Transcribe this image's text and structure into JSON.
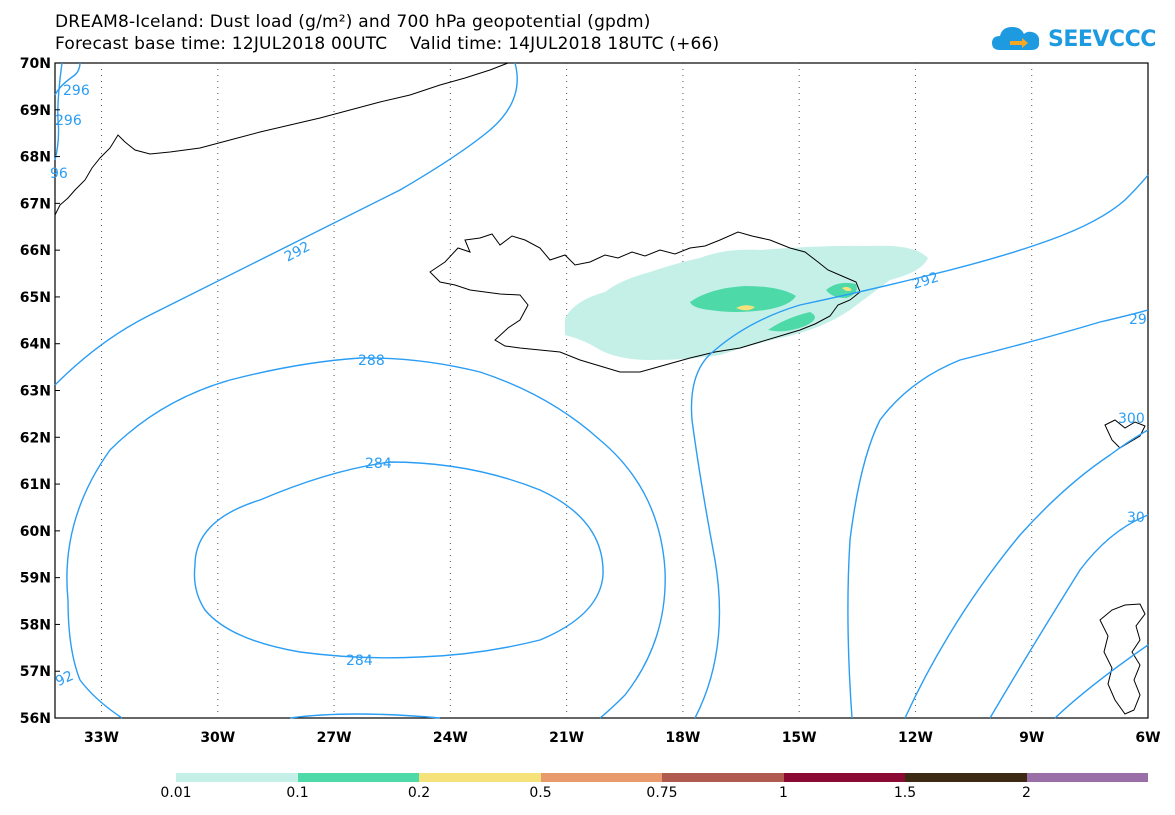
{
  "title": {
    "line1": "DREAM8-Iceland: Dust load (g/m²) and 700 hPa geopotential (gpdm)",
    "line2": "Forecast base time: 12JUL2018 00UTC    Valid time: 14JUL2018 18UTC (+66)"
  },
  "logo": {
    "text": "SEEVCCC",
    "color": "#1e9be0"
  },
  "map": {
    "lat_labels": [
      "70N",
      "69N",
      "68N",
      "67N",
      "66N",
      "65N",
      "64N",
      "63N",
      "62N",
      "61N",
      "60N",
      "59N",
      "58N",
      "57N",
      "56N"
    ],
    "lon_labels": [
      "33W",
      "30W",
      "27W",
      "24W",
      "21W",
      "18W",
      "15W",
      "12W",
      "9W",
      "6W"
    ],
    "lat_range": [
      56,
      70
    ],
    "lon_range": [
      -34.2,
      -6
    ],
    "gridlines": "dotted",
    "contour_color": "#2a9df4",
    "contour_labels": [
      {
        "text": "296",
        "name": "contour-label-296-top"
      },
      {
        "text": "296",
        "name": "contour-label-296-top2"
      },
      {
        "text": "96",
        "name": "contour-label-96-left"
      },
      {
        "text": "292",
        "name": "contour-label-292-west"
      },
      {
        "text": "292",
        "name": "contour-label-292-east"
      },
      {
        "text": "29",
        "name": "contour-label-29-east"
      },
      {
        "text": "288",
        "name": "contour-label-288"
      },
      {
        "text": "284",
        "name": "contour-label-284-north"
      },
      {
        "text": "284",
        "name": "contour-label-284-south"
      },
      {
        "text": "300",
        "name": "contour-label-300"
      },
      {
        "text": "30",
        "name": "contour-label-30"
      },
      {
        "text": "92",
        "name": "contour-label-92-southwest"
      }
    ]
  },
  "colorbar": {
    "colors": [
      "#c5f0e8",
      "#4dd9a8",
      "#f5e27a",
      "#e89a6c",
      "#b05a50",
      "#8a0a34",
      "#3d2a14",
      "#9a6fa8"
    ],
    "labels": [
      "0.01",
      "0.1",
      "0.2",
      "0.5",
      "0.75",
      "1",
      "1.5",
      "2"
    ]
  }
}
